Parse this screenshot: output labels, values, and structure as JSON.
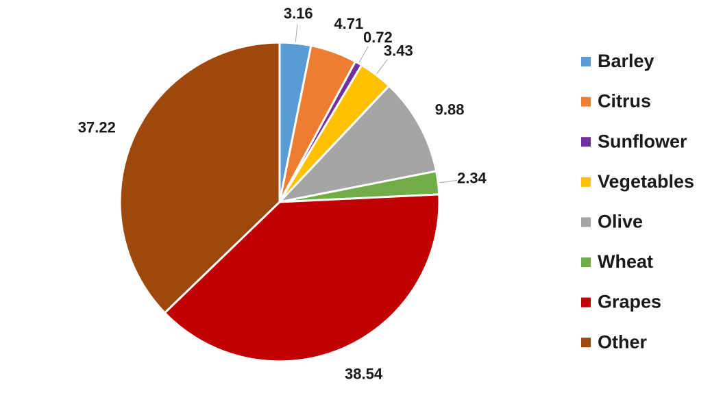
{
  "chart_data": {
    "type": "pie",
    "categories": [
      "Barley",
      "Citrus",
      "Sunflower",
      "Vegetables",
      "Olive",
      "Wheat",
      "Grapes",
      "Other"
    ],
    "values": [
      3.16,
      4.71,
      0.72,
      3.43,
      9.88,
      2.34,
      38.54,
      37.22
    ],
    "colors": [
      "#5b9bd5",
      "#ed7d31",
      "#7030a0",
      "#ffc000",
      "#a5a5a5",
      "#70ad47",
      "#c00000",
      "#9e480e"
    ],
    "legend": "right"
  }
}
